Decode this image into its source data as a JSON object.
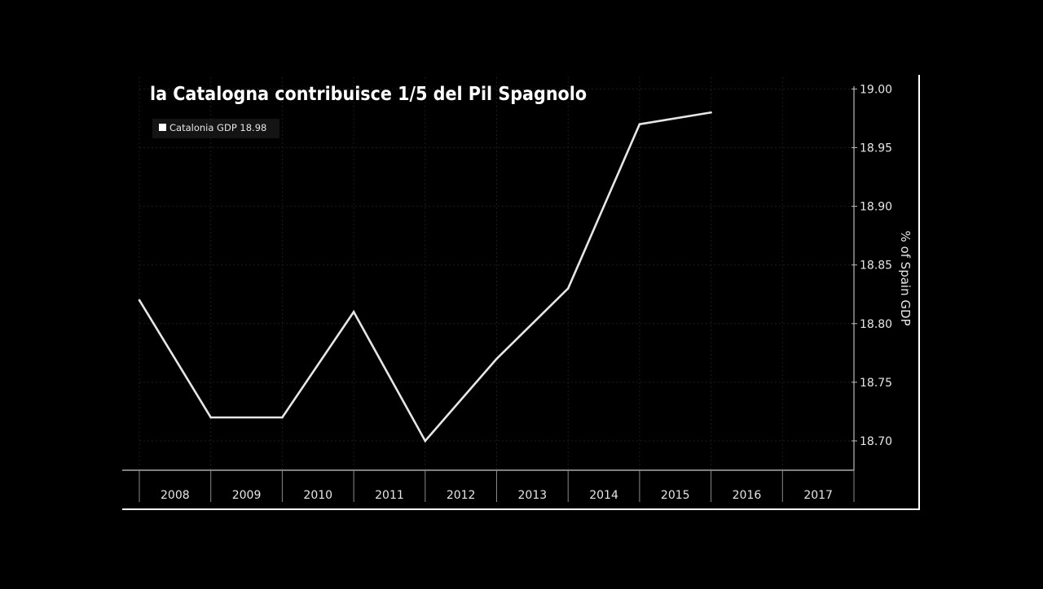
{
  "chart_data": {
    "type": "line",
    "title": "la Catalogna contribuisce 1/5 del Pil Spagnolo",
    "ylabel": "% of Spain GDP",
    "xlabel": "",
    "legend": {
      "label": "Catalonia GDP 18.98",
      "placement": "top-left"
    },
    "categories": [
      "2008",
      "2009",
      "2010",
      "2011",
      "2012",
      "2013",
      "2014",
      "2015",
      "2016",
      "2017"
    ],
    "x": [
      2008.0,
      2009.0,
      2010.0,
      2011.0,
      2012.0,
      2013.0,
      2014.0,
      2015.0,
      2016.0
    ],
    "series": [
      {
        "name": "Catalonia GDP",
        "color": "#e6e6e6",
        "values": [
          18.82,
          18.72,
          18.72,
          18.81,
          18.7,
          18.77,
          18.83,
          18.97,
          18.98
        ]
      }
    ],
    "xlim": [
      2008,
      2018
    ],
    "ylim": [
      18.675,
      19.01
    ],
    "yticks": [
      "18.70",
      "18.75",
      "18.80",
      "18.85",
      "18.90",
      "18.95",
      "19.00"
    ],
    "y_axis_side": "right",
    "grid": true,
    "colors": {
      "background": "#000000",
      "text": "#ffffff",
      "grid": "#1c1c1c",
      "frame": "#ffffff",
      "axis": "#bbbbbb"
    }
  }
}
